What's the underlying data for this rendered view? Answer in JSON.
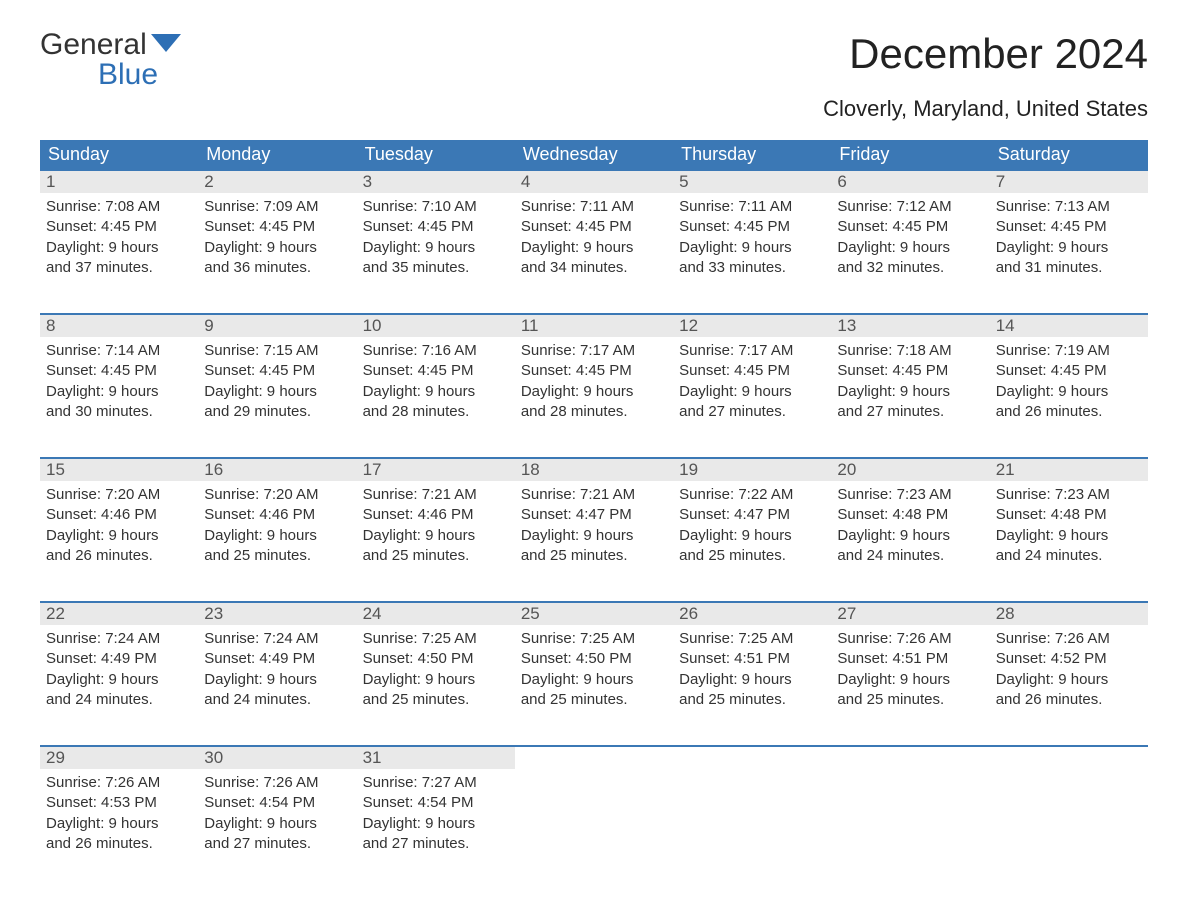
{
  "logo": {
    "line1": "General",
    "line2": "Blue",
    "flag_color": "#2d6fb5"
  },
  "title": "December 2024",
  "subtitle": "Cloverly, Maryland, United States",
  "colors": {
    "header_bg": "#3b78b5",
    "header_text": "#ffffff",
    "daynum_bg": "#e9e9e9",
    "daynum_text": "#555555",
    "body_text": "#333333",
    "week_border": "#3b78b5",
    "page_bg": "#ffffff"
  },
  "fontsizes": {
    "title": 42,
    "subtitle": 22,
    "weekday": 18,
    "daynum": 17,
    "body": 15,
    "logo": 30
  },
  "weekdays": [
    "Sunday",
    "Monday",
    "Tuesday",
    "Wednesday",
    "Thursday",
    "Friday",
    "Saturday"
  ],
  "weeks": [
    [
      {
        "n": "1",
        "sunrise": "Sunrise: 7:08 AM",
        "sunset": "Sunset: 4:45 PM",
        "d1": "Daylight: 9 hours",
        "d2": "and 37 minutes."
      },
      {
        "n": "2",
        "sunrise": "Sunrise: 7:09 AM",
        "sunset": "Sunset: 4:45 PM",
        "d1": "Daylight: 9 hours",
        "d2": "and 36 minutes."
      },
      {
        "n": "3",
        "sunrise": "Sunrise: 7:10 AM",
        "sunset": "Sunset: 4:45 PM",
        "d1": "Daylight: 9 hours",
        "d2": "and 35 minutes."
      },
      {
        "n": "4",
        "sunrise": "Sunrise: 7:11 AM",
        "sunset": "Sunset: 4:45 PM",
        "d1": "Daylight: 9 hours",
        "d2": "and 34 minutes."
      },
      {
        "n": "5",
        "sunrise": "Sunrise: 7:11 AM",
        "sunset": "Sunset: 4:45 PM",
        "d1": "Daylight: 9 hours",
        "d2": "and 33 minutes."
      },
      {
        "n": "6",
        "sunrise": "Sunrise: 7:12 AM",
        "sunset": "Sunset: 4:45 PM",
        "d1": "Daylight: 9 hours",
        "d2": "and 32 minutes."
      },
      {
        "n": "7",
        "sunrise": "Sunrise: 7:13 AM",
        "sunset": "Sunset: 4:45 PM",
        "d1": "Daylight: 9 hours",
        "d2": "and 31 minutes."
      }
    ],
    [
      {
        "n": "8",
        "sunrise": "Sunrise: 7:14 AM",
        "sunset": "Sunset: 4:45 PM",
        "d1": "Daylight: 9 hours",
        "d2": "and 30 minutes."
      },
      {
        "n": "9",
        "sunrise": "Sunrise: 7:15 AM",
        "sunset": "Sunset: 4:45 PM",
        "d1": "Daylight: 9 hours",
        "d2": "and 29 minutes."
      },
      {
        "n": "10",
        "sunrise": "Sunrise: 7:16 AM",
        "sunset": "Sunset: 4:45 PM",
        "d1": "Daylight: 9 hours",
        "d2": "and 28 minutes."
      },
      {
        "n": "11",
        "sunrise": "Sunrise: 7:17 AM",
        "sunset": "Sunset: 4:45 PM",
        "d1": "Daylight: 9 hours",
        "d2": "and 28 minutes."
      },
      {
        "n": "12",
        "sunrise": "Sunrise: 7:17 AM",
        "sunset": "Sunset: 4:45 PM",
        "d1": "Daylight: 9 hours",
        "d2": "and 27 minutes."
      },
      {
        "n": "13",
        "sunrise": "Sunrise: 7:18 AM",
        "sunset": "Sunset: 4:45 PM",
        "d1": "Daylight: 9 hours",
        "d2": "and 27 minutes."
      },
      {
        "n": "14",
        "sunrise": "Sunrise: 7:19 AM",
        "sunset": "Sunset: 4:45 PM",
        "d1": "Daylight: 9 hours",
        "d2": "and 26 minutes."
      }
    ],
    [
      {
        "n": "15",
        "sunrise": "Sunrise: 7:20 AM",
        "sunset": "Sunset: 4:46 PM",
        "d1": "Daylight: 9 hours",
        "d2": "and 26 minutes."
      },
      {
        "n": "16",
        "sunrise": "Sunrise: 7:20 AM",
        "sunset": "Sunset: 4:46 PM",
        "d1": "Daylight: 9 hours",
        "d2": "and 25 minutes."
      },
      {
        "n": "17",
        "sunrise": "Sunrise: 7:21 AM",
        "sunset": "Sunset: 4:46 PM",
        "d1": "Daylight: 9 hours",
        "d2": "and 25 minutes."
      },
      {
        "n": "18",
        "sunrise": "Sunrise: 7:21 AM",
        "sunset": "Sunset: 4:47 PM",
        "d1": "Daylight: 9 hours",
        "d2": "and 25 minutes."
      },
      {
        "n": "19",
        "sunrise": "Sunrise: 7:22 AM",
        "sunset": "Sunset: 4:47 PM",
        "d1": "Daylight: 9 hours",
        "d2": "and 25 minutes."
      },
      {
        "n": "20",
        "sunrise": "Sunrise: 7:23 AM",
        "sunset": "Sunset: 4:48 PM",
        "d1": "Daylight: 9 hours",
        "d2": "and 24 minutes."
      },
      {
        "n": "21",
        "sunrise": "Sunrise: 7:23 AM",
        "sunset": "Sunset: 4:48 PM",
        "d1": "Daylight: 9 hours",
        "d2": "and 24 minutes."
      }
    ],
    [
      {
        "n": "22",
        "sunrise": "Sunrise: 7:24 AM",
        "sunset": "Sunset: 4:49 PM",
        "d1": "Daylight: 9 hours",
        "d2": "and 24 minutes."
      },
      {
        "n": "23",
        "sunrise": "Sunrise: 7:24 AM",
        "sunset": "Sunset: 4:49 PM",
        "d1": "Daylight: 9 hours",
        "d2": "and 24 minutes."
      },
      {
        "n": "24",
        "sunrise": "Sunrise: 7:25 AM",
        "sunset": "Sunset: 4:50 PM",
        "d1": "Daylight: 9 hours",
        "d2": "and 25 minutes."
      },
      {
        "n": "25",
        "sunrise": "Sunrise: 7:25 AM",
        "sunset": "Sunset: 4:50 PM",
        "d1": "Daylight: 9 hours",
        "d2": "and 25 minutes."
      },
      {
        "n": "26",
        "sunrise": "Sunrise: 7:25 AM",
        "sunset": "Sunset: 4:51 PM",
        "d1": "Daylight: 9 hours",
        "d2": "and 25 minutes."
      },
      {
        "n": "27",
        "sunrise": "Sunrise: 7:26 AM",
        "sunset": "Sunset: 4:51 PM",
        "d1": "Daylight: 9 hours",
        "d2": "and 25 minutes."
      },
      {
        "n": "28",
        "sunrise": "Sunrise: 7:26 AM",
        "sunset": "Sunset: 4:52 PM",
        "d1": "Daylight: 9 hours",
        "d2": "and 26 minutes."
      }
    ],
    [
      {
        "n": "29",
        "sunrise": "Sunrise: 7:26 AM",
        "sunset": "Sunset: 4:53 PM",
        "d1": "Daylight: 9 hours",
        "d2": "and 26 minutes."
      },
      {
        "n": "30",
        "sunrise": "Sunrise: 7:26 AM",
        "sunset": "Sunset: 4:54 PM",
        "d1": "Daylight: 9 hours",
        "d2": "and 27 minutes."
      },
      {
        "n": "31",
        "sunrise": "Sunrise: 7:27 AM",
        "sunset": "Sunset: 4:54 PM",
        "d1": "Daylight: 9 hours",
        "d2": "and 27 minutes."
      },
      {
        "empty": true
      },
      {
        "empty": true
      },
      {
        "empty": true
      },
      {
        "empty": true
      }
    ]
  ]
}
